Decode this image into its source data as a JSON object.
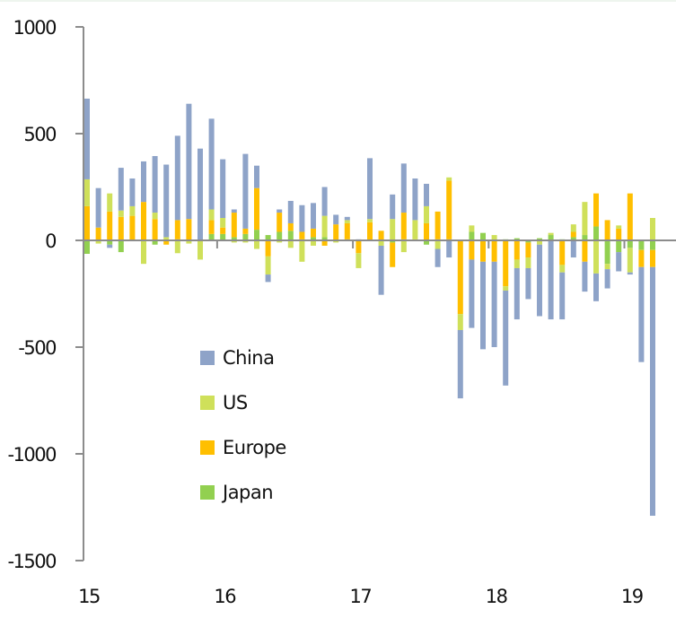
{
  "chart_data": {
    "type": "bar",
    "stacked": true,
    "title": "",
    "xlabel": "",
    "ylabel": "",
    "ylim": [
      -1500,
      1000
    ],
    "yticks": [
      1000,
      500,
      0,
      -500,
      -1000,
      -1500
    ],
    "ytick_labels": [
      "1000",
      "500",
      "0",
      "-500",
      "-1000",
      "-1500"
    ],
    "xtick_labels": [
      "15",
      "16",
      "17",
      "18",
      "19"
    ],
    "xtick_month_index": [
      0,
      12,
      24,
      36,
      48
    ],
    "grid": false,
    "legend_position": "center-left",
    "series": [
      {
        "name": "China",
        "color": "#8ea3c8",
        "values": [
          378,
          185,
          -15,
          200,
          130,
          190,
          265,
          340,
          395,
          540,
          430,
          425,
          275,
          15,
          350,
          105,
          -35,
          15,
          105,
          125,
          120,
          135,
          45,
          15,
          5,
          285,
          -230,
          115,
          230,
          195,
          105,
          -85,
          -80,
          -320,
          -320,
          -410,
          -400,
          -445,
          -240,
          -145,
          -335,
          -370,
          -220,
          -80,
          -140,
          -130,
          -90,
          -90,
          -10,
          -445,
          -1165
        ]
      },
      {
        "name": "US",
        "color": "#cfe05a",
        "values": [
          126,
          -15,
          85,
          30,
          45,
          -110,
          30,
          15,
          -60,
          -15,
          -90,
          50,
          45,
          -10,
          -10,
          -40,
          -85,
          -10,
          -35,
          -100,
          -25,
          100,
          -10,
          15,
          -70,
          15,
          -25,
          100,
          -55,
          90,
          80,
          -40,
          15,
          -75,
          30,
          0,
          25,
          -20,
          -40,
          -50,
          -20,
          10,
          -35,
          35,
          155,
          -155,
          -25,
          15,
          -115,
          0,
          105
        ]
      },
      {
        "name": "Europe",
        "color": "#ffbf00",
        "values": [
          160,
          60,
          135,
          110,
          115,
          180,
          100,
          -20,
          90,
          100,
          0,
          65,
          30,
          115,
          25,
          195,
          -75,
          90,
          35,
          35,
          40,
          -25,
          75,
          75,
          -60,
          85,
          45,
          -115,
          125,
          5,
          80,
          130,
          275,
          -345,
          -90,
          -100,
          -100,
          -215,
          -90,
          -70,
          0,
          0,
          -115,
          25,
          -100,
          155,
          95,
          55,
          220,
          -80,
          -80
        ]
      },
      {
        "name": "Japan",
        "color": "#92d050",
        "values": [
          -63,
          0,
          -20,
          -55,
          0,
          0,
          -20,
          0,
          5,
          0,
          0,
          30,
          30,
          15,
          30,
          50,
          25,
          40,
          45,
          5,
          15,
          15,
          0,
          5,
          0,
          0,
          0,
          -10,
          5,
          0,
          -20,
          5,
          5,
          0,
          40,
          35,
          0,
          5,
          10,
          -10,
          10,
          25,
          5,
          15,
          25,
          65,
          -110,
          -55,
          -35,
          -45,
          -45
        ]
      }
    ]
  }
}
